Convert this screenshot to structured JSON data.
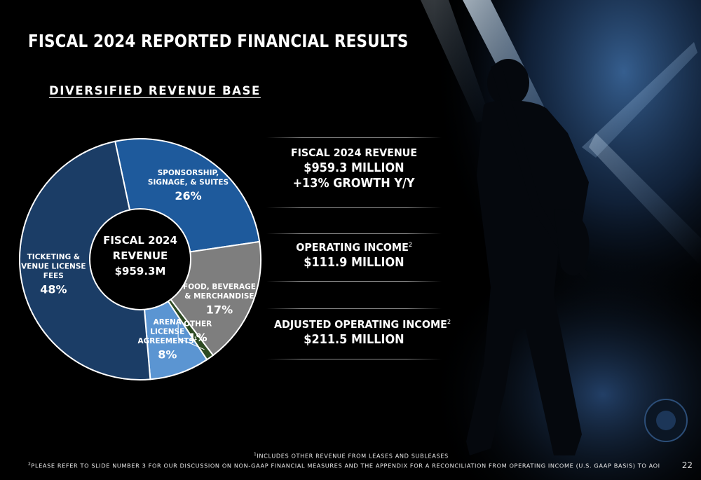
{
  "title": "FISCAL 2024 REPORTED FINANCIAL RESULTS",
  "subtitle": "DIVERSIFIED REVENUE BASE",
  "colors": {
    "ticketing": "#1b3d66",
    "sponsorship": "#1e5a9c",
    "food": "#7e7e7e",
    "other": "#2d4a22",
    "arena": "#5b95d2",
    "outline": "#ffffff"
  },
  "chart_data": {
    "type": "pie",
    "center_label": [
      "FISCAL 2024",
      "REVENUE",
      "$959.3M"
    ],
    "slices": [
      {
        "label": [
          "SPONSORSHIP,",
          "SIGNAGE, & SUITES"
        ],
        "percent_label": "26%",
        "value": 26,
        "color_key": "sponsorship"
      },
      {
        "label": [
          "FOOD, BEVERAGE",
          "& MERCHANDISE"
        ],
        "percent_label": "17%",
        "value": 17,
        "color_key": "food"
      },
      {
        "label": [
          "OTHER"
        ],
        "percent_label": "1%",
        "value": 1,
        "color_key": "other"
      },
      {
        "label": [
          "ARENA",
          "LICENSE",
          "AGREEMENTS"
        ],
        "label_sup": "1",
        "percent_label": "8%",
        "value": 8,
        "color_key": "arena"
      },
      {
        "label": [
          "TICKETING &",
          "VENUE LICENSE",
          "FEES"
        ],
        "percent_label": "48%",
        "value": 48,
        "color_key": "ticketing"
      }
    ]
  },
  "metrics": [
    {
      "label": "FISCAL 2024 REVENUE",
      "values": [
        "$959.3 MILLION",
        "+13% GROWTH Y/Y"
      ]
    },
    {
      "label": "OPERATING INCOME",
      "label_sup": "2",
      "values": [
        "$111.9 MILLION"
      ]
    },
    {
      "label": "ADJUSTED OPERATING INCOME",
      "label_sup": "2",
      "values": [
        "$211.5 MILLION"
      ]
    }
  ],
  "footnotes": [
    {
      "sup": "1",
      "text": "INCLUDES OTHER REVENUE FROM LEASES AND SUBLEASES"
    },
    {
      "sup": "2",
      "text": "PLEASE REFER TO SLIDE NUMBER 3 FOR OUR DISCUSSION ON NON-GAAP FINANCIAL MEASURES AND THE APPENDIX FOR A RECONCILIATION FROM OPERATING INCOME (U.S. GAAP BASIS) TO AOI"
    }
  ],
  "page_number": "22"
}
